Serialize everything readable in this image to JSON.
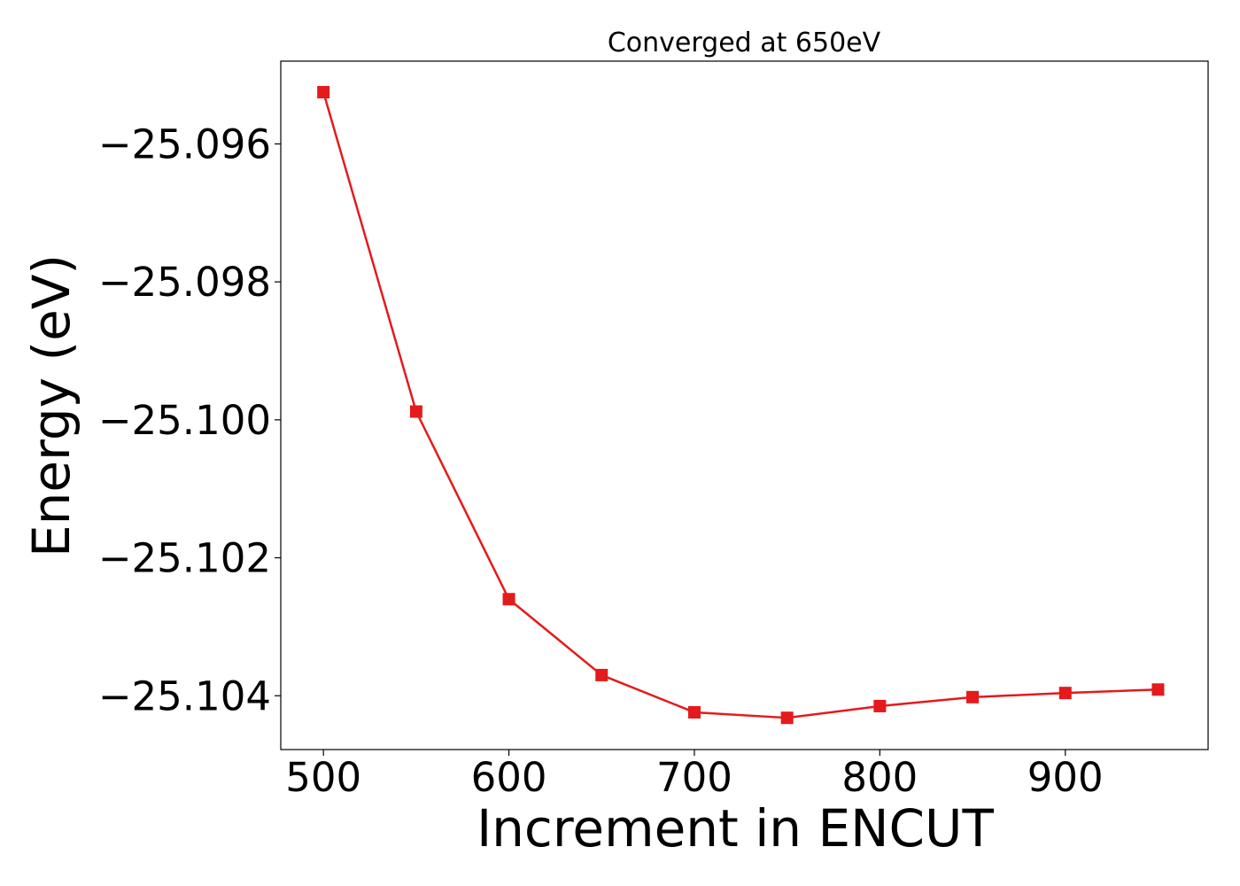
{
  "chart_data": {
    "type": "line",
    "title": "Converged at 650eV",
    "xlabel": "Increment in ENCUT",
    "ylabel": "Energy (eV)",
    "x": [
      500,
      550,
      600,
      650,
      700,
      750,
      800,
      850,
      900,
      950
    ],
    "series": [
      {
        "values": [
          -25.09525,
          -25.09988,
          -25.1026,
          -25.1037,
          -25.10424,
          -25.10432,
          -25.10415,
          -25.10402,
          -25.10396,
          -25.10391
        ],
        "color": "#e41a1c",
        "marker": "square"
      }
    ],
    "xlim": [
      477,
      977
    ],
    "ylim": [
      -25.10478,
      -25.0948
    ],
    "xticks": [
      500,
      600,
      700,
      800,
      900
    ],
    "xtick_labels": [
      "500",
      "600",
      "700",
      "800",
      "900"
    ],
    "yticks": [
      -25.096,
      -25.098,
      -25.1,
      -25.102,
      -25.104
    ],
    "ytick_labels": [
      "−25.096",
      "−25.098",
      "−25.100",
      "−25.102",
      "−25.104"
    ],
    "grid": false,
    "legend": "none"
  }
}
